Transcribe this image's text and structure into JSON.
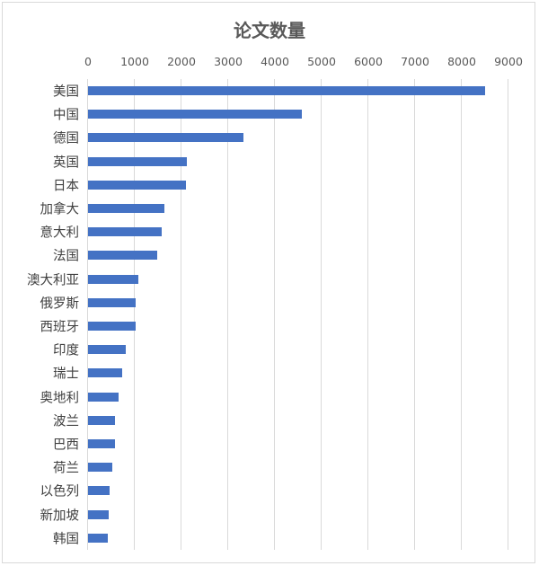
{
  "chart_data": {
    "type": "bar",
    "orientation": "horizontal",
    "title": "论文数量",
    "xlabel": "",
    "ylabel": "",
    "xlim": [
      0,
      9000
    ],
    "x_ticks": [
      "0",
      "1000",
      "2000",
      "3000",
      "4000",
      "5000",
      "6000",
      "7000",
      "8000",
      "9000"
    ],
    "grid": true,
    "legend": null,
    "axis_position": "top",
    "bar_color": "#4472C4",
    "categories": [
      "美国",
      "中国",
      "德国",
      "英国",
      "日本",
      "加拿大",
      "意大利",
      "法国",
      "澳大利亚",
      "俄罗斯",
      "西班牙",
      "印度",
      "瑞士",
      "奥地利",
      "波兰",
      "巴西",
      "荷兰",
      "以色列",
      "新加坡",
      "韩国"
    ],
    "values": [
      8500,
      4570,
      3320,
      2110,
      2100,
      1630,
      1580,
      1480,
      1080,
      1020,
      1020,
      810,
      740,
      660,
      580,
      580,
      510,
      460,
      450,
      430
    ]
  }
}
